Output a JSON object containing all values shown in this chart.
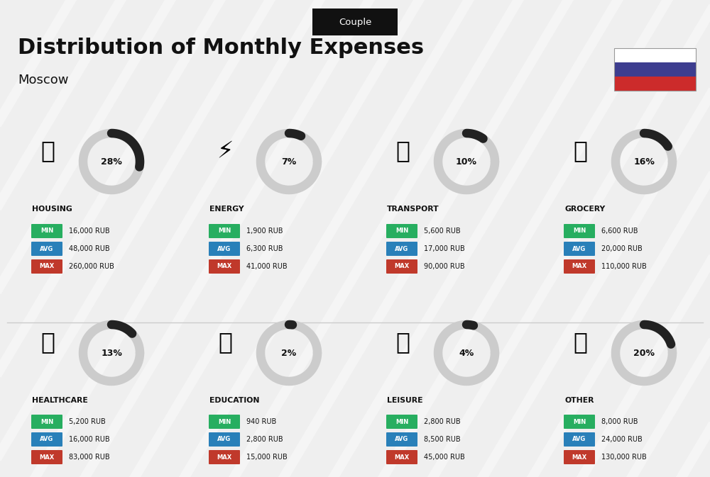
{
  "title": "Distribution of Monthly Expenses",
  "subtitle": "Moscow",
  "header_label": "Couple",
  "bg_color": "#efefef",
  "categories": [
    {
      "name": "HOUSING",
      "pct": 28,
      "min_val": "16,000 RUB",
      "avg_val": "48,000 RUB",
      "max_val": "260,000 RUB",
      "row": 0,
      "col": 0
    },
    {
      "name": "ENERGY",
      "pct": 7,
      "min_val": "1,900 RUB",
      "avg_val": "6,300 RUB",
      "max_val": "41,000 RUB",
      "row": 0,
      "col": 1
    },
    {
      "name": "TRANSPORT",
      "pct": 10,
      "min_val": "5,600 RUB",
      "avg_val": "17,000 RUB",
      "max_val": "90,000 RUB",
      "row": 0,
      "col": 2
    },
    {
      "name": "GROCERY",
      "pct": 16,
      "min_val": "6,600 RUB",
      "avg_val": "20,000 RUB",
      "max_val": "110,000 RUB",
      "row": 0,
      "col": 3
    },
    {
      "name": "HEALTHCARE",
      "pct": 13,
      "min_val": "5,200 RUB",
      "avg_val": "16,000 RUB",
      "max_val": "83,000 RUB",
      "row": 1,
      "col": 0
    },
    {
      "name": "EDUCATION",
      "pct": 2,
      "min_val": "940 RUB",
      "avg_val": "2,800 RUB",
      "max_val": "15,000 RUB",
      "row": 1,
      "col": 1
    },
    {
      "name": "LEISURE",
      "pct": 4,
      "min_val": "2,800 RUB",
      "avg_val": "8,500 RUB",
      "max_val": "45,000 RUB",
      "row": 1,
      "col": 2
    },
    {
      "name": "OTHER",
      "pct": 20,
      "min_val": "8,000 RUB",
      "avg_val": "24,000 RUB",
      "max_val": "130,000 RUB",
      "row": 1,
      "col": 3
    }
  ],
  "min_color": "#27ae60",
  "avg_color": "#2980b9",
  "max_color": "#c0392b",
  "arc_color": "#222222",
  "arc_bg_color": "#cccccc",
  "flag_blue": "#3d3d8f",
  "flag_red": "#cc2b2b"
}
